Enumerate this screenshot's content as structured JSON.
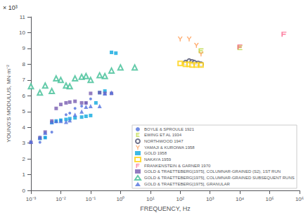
{
  "chart_data": {
    "type": "scatter",
    "xlabel": "FREQUENCY, Hz",
    "ylabel": "YOUNG'S MODULUS, MN·m⁻²",
    "annotations": [
      "× 10³"
    ],
    "log": "x",
    "xlim": [
      0.001,
      1000000
    ],
    "xticks": [
      {
        "value": 0.001,
        "label": "10⁻³"
      },
      {
        "value": 0.01,
        "label": "10⁻²"
      },
      {
        "value": 0.1,
        "label": "10⁻¹"
      },
      {
        "value": 1,
        "label": "10⁰"
      },
      {
        "value": 10,
        "label": "10¹"
      },
      {
        "value": 100,
        "label": "10²"
      },
      {
        "value": 1000,
        "label": "10³"
      },
      {
        "value": 10000,
        "label": "10⁴"
      },
      {
        "value": 100000,
        "label": "10⁵"
      },
      {
        "value": 1000000,
        "label": "10⁶"
      }
    ],
    "ylim": [
      0,
      11
    ],
    "yticks": [
      0,
      1,
      2,
      3,
      4,
      5,
      6,
      7,
      8,
      9,
      10,
      11
    ],
    "grid": false,
    "legend": "lower right",
    "series": [
      {
        "name": "BOYLE & SPROULE 1921",
        "marker": "dot",
        "x": [
          0.002,
          0.003,
          0.005,
          0.007,
          0.01,
          0.015,
          0.02,
          0.03,
          0.05,
          0.07,
          0.1,
          0.2
        ],
        "values": [
          3.05,
          3.35,
          3.7,
          4.35,
          4.45,
          4.8,
          4.9,
          5.2,
          5.35,
          5.55,
          5.8,
          6.2
        ]
      },
      {
        "name": "EWING ET AL 1934",
        "marker": "E",
        "x": [
          500,
          10000.0
        ],
        "values": [
          8.85,
          9.05
        ]
      },
      {
        "name": "NORTHWOOD 1947",
        "marker": "circle_open",
        "x": [
          150,
          200,
          250,
          300,
          400,
          500
        ],
        "values": [
          8.1,
          8.2,
          8.15,
          8.1,
          8.05,
          8.0
        ]
      },
      {
        "name": "YAMAJI & KUROIWA 1958",
        "marker": "Y",
        "x": [
          100,
          200,
          350,
          500
        ],
        "values": [
          9.6,
          9.6,
          9.2,
          8.65
        ]
      },
      {
        "name": "GOLD 1958",
        "marker": "square",
        "x": [
          0.002,
          0.003,
          0.005,
          0.007,
          0.01,
          0.015,
          0.02,
          0.03,
          0.05,
          0.07,
          0.1,
          0.15,
          0.2,
          0.3,
          0.5,
          0.7
        ],
        "values": [
          3.3,
          3.35,
          4.3,
          4.4,
          4.45,
          4.5,
          4.55,
          4.6,
          4.65,
          4.7,
          4.75,
          5.55,
          6.2,
          6.3,
          8.75,
          8.7
        ]
      },
      {
        "name": "NAKAYA 1959",
        "marker": "square_open",
        "x": [
          100,
          150,
          200,
          250,
          350,
          500
        ],
        "values": [
          8.05,
          8.0,
          8.0,
          7.95,
          7.95,
          7.95
        ]
      },
      {
        "name": "FRANKENSTEIN & GARNER 1970",
        "marker": "F",
        "x": [
          10000.0,
          300000.0
        ],
        "values": [
          9.1,
          9.9
        ]
      },
      {
        "name": "GOLD & TRAETTEBERG[1975], COLUMNAR-GRAINED (S2), 1ST RUN",
        "marker": "square",
        "x": [
          0.001,
          0.002,
          0.003,
          0.005,
          0.007,
          0.01,
          0.015,
          0.02,
          0.03,
          0.05,
          0.07,
          0.1,
          0.2,
          0.3,
          0.5
        ],
        "values": [
          3.05,
          3.35,
          3.7,
          4.4,
          5.2,
          5.45,
          5.55,
          5.6,
          5.65,
          5.55,
          5.55,
          6.15,
          6.2,
          6.15,
          6.15
        ]
      },
      {
        "name": "GOLD & TRAETTEBERG[1975], COLUMNAR-GRAINED SUBSEQUENT RUNS",
        "marker": "triangle_open",
        "x": [
          0.001,
          0.002,
          0.003,
          0.005,
          0.007,
          0.01,
          0.015,
          0.02,
          0.03,
          0.05,
          0.07,
          0.1,
          0.2,
          0.3,
          0.5,
          1.0,
          3.0
        ],
        "values": [
          6.6,
          6.2,
          6.65,
          6.3,
          7.1,
          7.0,
          6.65,
          6.6,
          7.1,
          7.2,
          7.25,
          7.0,
          7.3,
          7.25,
          7.6,
          7.8,
          7.8
        ]
      },
      {
        "name": "GOLD & TRAETTEBERG[1975], GRANULAR",
        "marker": "triangle",
        "x": [
          0.001,
          0.002,
          0.003,
          0.005,
          0.007,
          0.01,
          0.015,
          0.02,
          0.03,
          0.05,
          0.07,
          0.1,
          0.2,
          0.3,
          0.5
        ],
        "values": [
          3.1,
          3.35,
          3.65,
          4.35,
          4.4,
          4.4,
          4.35,
          4.45,
          4.8,
          5.0,
          5.3,
          5.35,
          5.35,
          6.15,
          6.2
        ]
      }
    ]
  }
}
